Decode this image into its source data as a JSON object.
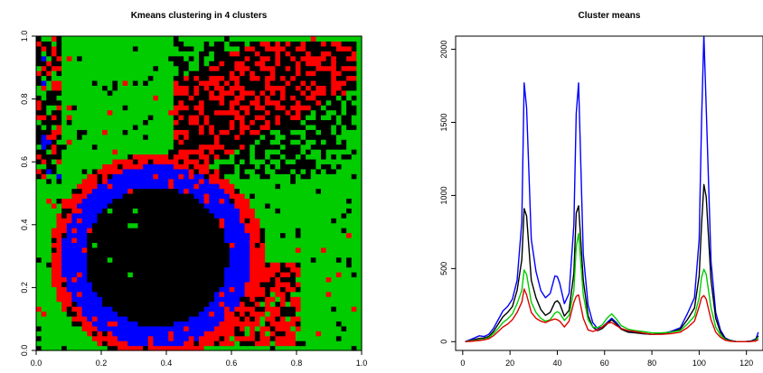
{
  "chart_data": [
    {
      "type": "heatmap",
      "title": "Kmeans clustering in 4 clusters",
      "xlim": [
        0,
        1
      ],
      "ylim": [
        0,
        1
      ],
      "x_ticks": [
        "0.0",
        "0.2",
        "0.4",
        "0.6",
        "0.8",
        "1.0"
      ],
      "y_ticks": [
        "0.0",
        "0.2",
        "0.4",
        "0.6",
        "0.8",
        "1.0"
      ],
      "grid_resolution": [
        64,
        64
      ],
      "cluster_colors": {
        "1": "#000000",
        "2": "#ff0000",
        "3": "#00cc00",
        "4": "#0000ff"
      },
      "regions": {
        "background_cluster": 3,
        "inner_disk": {
          "cluster": 1,
          "center": [
            0.37,
            0.3
          ],
          "radius": 0.22
        },
        "blue_ring": {
          "cluster": 4,
          "center": [
            0.37,
            0.3
          ],
          "radius_range": [
            0.22,
            0.29
          ]
        },
        "red_ring": {
          "cluster": 2,
          "center": [
            0.37,
            0.3
          ],
          "radius_range": [
            0.29,
            0.33
          ]
        },
        "upper_right_band": {
          "clusters": [
            1,
            2
          ],
          "x_range": [
            0.42,
            0.98
          ],
          "y_range": [
            0.55,
            0.99
          ]
        },
        "lower_right_band": {
          "clusters": [
            2,
            1
          ],
          "x_range": [
            0.45,
            0.82
          ],
          "y_range": [
            0.02,
            0.28
          ]
        },
        "left_strip": {
          "clusters": [
            1,
            2,
            4
          ],
          "x_range": [
            0.0,
            0.08
          ],
          "y_range": [
            0.55,
            1.0
          ]
        }
      }
    },
    {
      "type": "line",
      "title": "Cluster means",
      "xlim": [
        -3,
        127
      ],
      "ylim": [
        -60,
        2090
      ],
      "x_ticks": [
        "0",
        "20",
        "40",
        "60",
        "80",
        "100",
        "120"
      ],
      "y_ticks": [
        "0",
        "500",
        "1000",
        "1500",
        "2000"
      ],
      "x": [
        1,
        3,
        5,
        7,
        9,
        11,
        13,
        15,
        17,
        19,
        21,
        23,
        25,
        26,
        27,
        29,
        31,
        33,
        35,
        37,
        39,
        40,
        41,
        43,
        45,
        47,
        48,
        49,
        51,
        53,
        55,
        57,
        59,
        61,
        63,
        65,
        67,
        70,
        73,
        76,
        80,
        84,
        88,
        92,
        95,
        98,
        100,
        101,
        102,
        103,
        105,
        107,
        109,
        111,
        113,
        116,
        119,
        122,
        124,
        125
      ],
      "series": [
        {
          "color": "#0000ff",
          "values": [
            0,
            12,
            25,
            40,
            35,
            50,
            90,
            150,
            210,
            240,
            290,
            420,
            820,
            1770,
            1600,
            700,
            480,
            350,
            300,
            330,
            450,
            445,
            400,
            260,
            330,
            800,
            1560,
            1770,
            600,
            250,
            130,
            90,
            100,
            130,
            160,
            130,
            90,
            70,
            70,
            55,
            50,
            55,
            70,
            95,
            190,
            300,
            700,
            1500,
            2100,
            1600,
            550,
            200,
            80,
            25,
            10,
            0,
            0,
            5,
            20,
            65
          ]
        },
        {
          "color": "#000000",
          "values": [
            0,
            8,
            15,
            22,
            25,
            35,
            70,
            120,
            170,
            200,
            240,
            350,
            560,
            910,
            860,
            420,
            300,
            220,
            180,
            200,
            270,
            280,
            260,
            175,
            215,
            470,
            880,
            930,
            420,
            180,
            100,
            75,
            90,
            120,
            150,
            120,
            85,
            65,
            60,
            55,
            50,
            55,
            65,
            85,
            150,
            230,
            450,
            800,
            1075,
            990,
            420,
            160,
            65,
            20,
            8,
            0,
            0,
            3,
            15,
            40
          ]
        },
        {
          "color": "#00cc00",
          "values": [
            0,
            5,
            8,
            12,
            18,
            28,
            55,
            90,
            130,
            155,
            190,
            260,
            350,
            490,
            460,
            270,
            200,
            160,
            140,
            150,
            195,
            205,
            195,
            145,
            180,
            350,
            650,
            740,
            320,
            150,
            100,
            95,
            115,
            160,
            190,
            155,
            110,
            85,
            75,
            70,
            60,
            60,
            65,
            75,
            120,
            175,
            300,
            440,
            495,
            460,
            230,
            100,
            45,
            15,
            5,
            0,
            0,
            2,
            10,
            30
          ]
        },
        {
          "color": "#dd0000",
          "values": [
            0,
            2,
            5,
            8,
            12,
            20,
            40,
            70,
            100,
            120,
            150,
            200,
            270,
            360,
            320,
            200,
            160,
            140,
            130,
            145,
            155,
            150,
            140,
            100,
            140,
            270,
            310,
            320,
            160,
            80,
            70,
            80,
            100,
            125,
            130,
            110,
            90,
            75,
            70,
            60,
            50,
            50,
            55,
            65,
            95,
            140,
            240,
            300,
            315,
            290,
            150,
            65,
            30,
            10,
            3,
            0,
            0,
            1,
            5,
            15
          ]
        }
      ]
    }
  ]
}
